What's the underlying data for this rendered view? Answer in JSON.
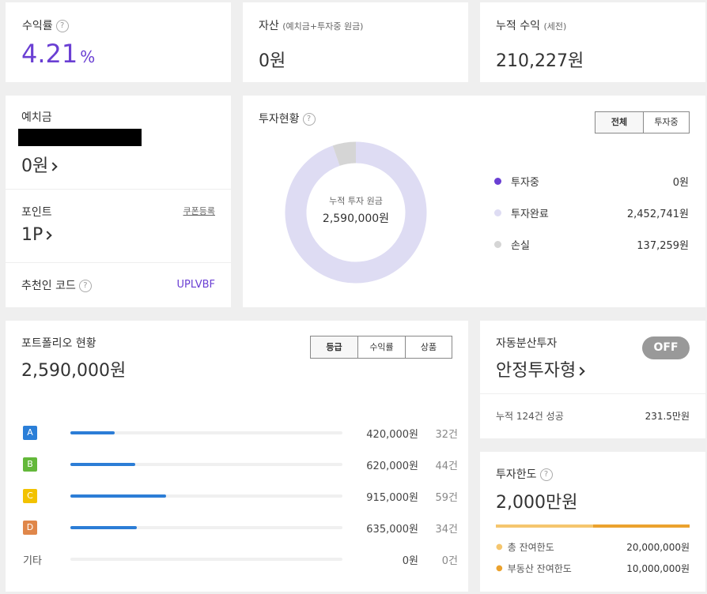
{
  "yield": {
    "label": "수익률",
    "value": "4.21",
    "unit": "%"
  },
  "assets": {
    "label": "자산",
    "sub": "(예치금+투자중 원금)",
    "value": "0원"
  },
  "cumulative": {
    "label": "누적 수익",
    "sub": "(세전)",
    "value": "210,227원"
  },
  "deposit": {
    "label": "예치금",
    "value": "0원"
  },
  "point": {
    "label": "포인트",
    "coupon": "쿠폰등록",
    "value": "1P"
  },
  "referral": {
    "label": "추천인 코드",
    "code": "UPLVBF"
  },
  "investment": {
    "title": "투자현황",
    "tabs": [
      "전체",
      "투자중"
    ],
    "center_label": "누적 투자 원금",
    "center_value": "2,590,000원",
    "legend": [
      {
        "name": "투자중",
        "value": "0원",
        "color": "#6a3fd3",
        "amount": 0
      },
      {
        "name": "투자완료",
        "value": "2,452,741원",
        "color": "#dedcf3",
        "amount": 2452741
      },
      {
        "name": "손실",
        "value": "137,259원",
        "color": "#d5d5d5",
        "amount": 137259
      }
    ]
  },
  "portfolio": {
    "title": "포트폴리오 현황",
    "total": "2,590,000원",
    "tabs": [
      "등급",
      "수익률",
      "상품"
    ],
    "rows": [
      {
        "grade": "A",
        "color": "#2b7fd8",
        "ratio": 0.162,
        "amount": "420,000원",
        "count": "32건"
      },
      {
        "grade": "B",
        "color": "#63b83a",
        "ratio": 0.239,
        "amount": "620,000원",
        "count": "44건"
      },
      {
        "grade": "C",
        "color": "#f2c200",
        "ratio": 0.353,
        "amount": "915,000원",
        "count": "59건"
      },
      {
        "grade": "D",
        "color": "#e0874a",
        "ratio": 0.245,
        "amount": "635,000원",
        "count": "34건"
      }
    ],
    "other": {
      "label": "기타",
      "ratio": 0,
      "amount": "0원",
      "count": "0건"
    }
  },
  "auto": {
    "title": "자동분산투자",
    "toggle": "OFF",
    "type": "안정투자형",
    "footer_label": "누적 124건 성공",
    "footer_value": "231.5만원"
  },
  "limit": {
    "title": "투자한도",
    "value": "2,000만원",
    "rows": [
      {
        "label": "총 잔여한도",
        "value": "20,000,000원",
        "color": "#f5c66e"
      },
      {
        "label": "부동산 잔여한도",
        "value": "10,000,000원",
        "color": "#eba22e"
      }
    ]
  }
}
